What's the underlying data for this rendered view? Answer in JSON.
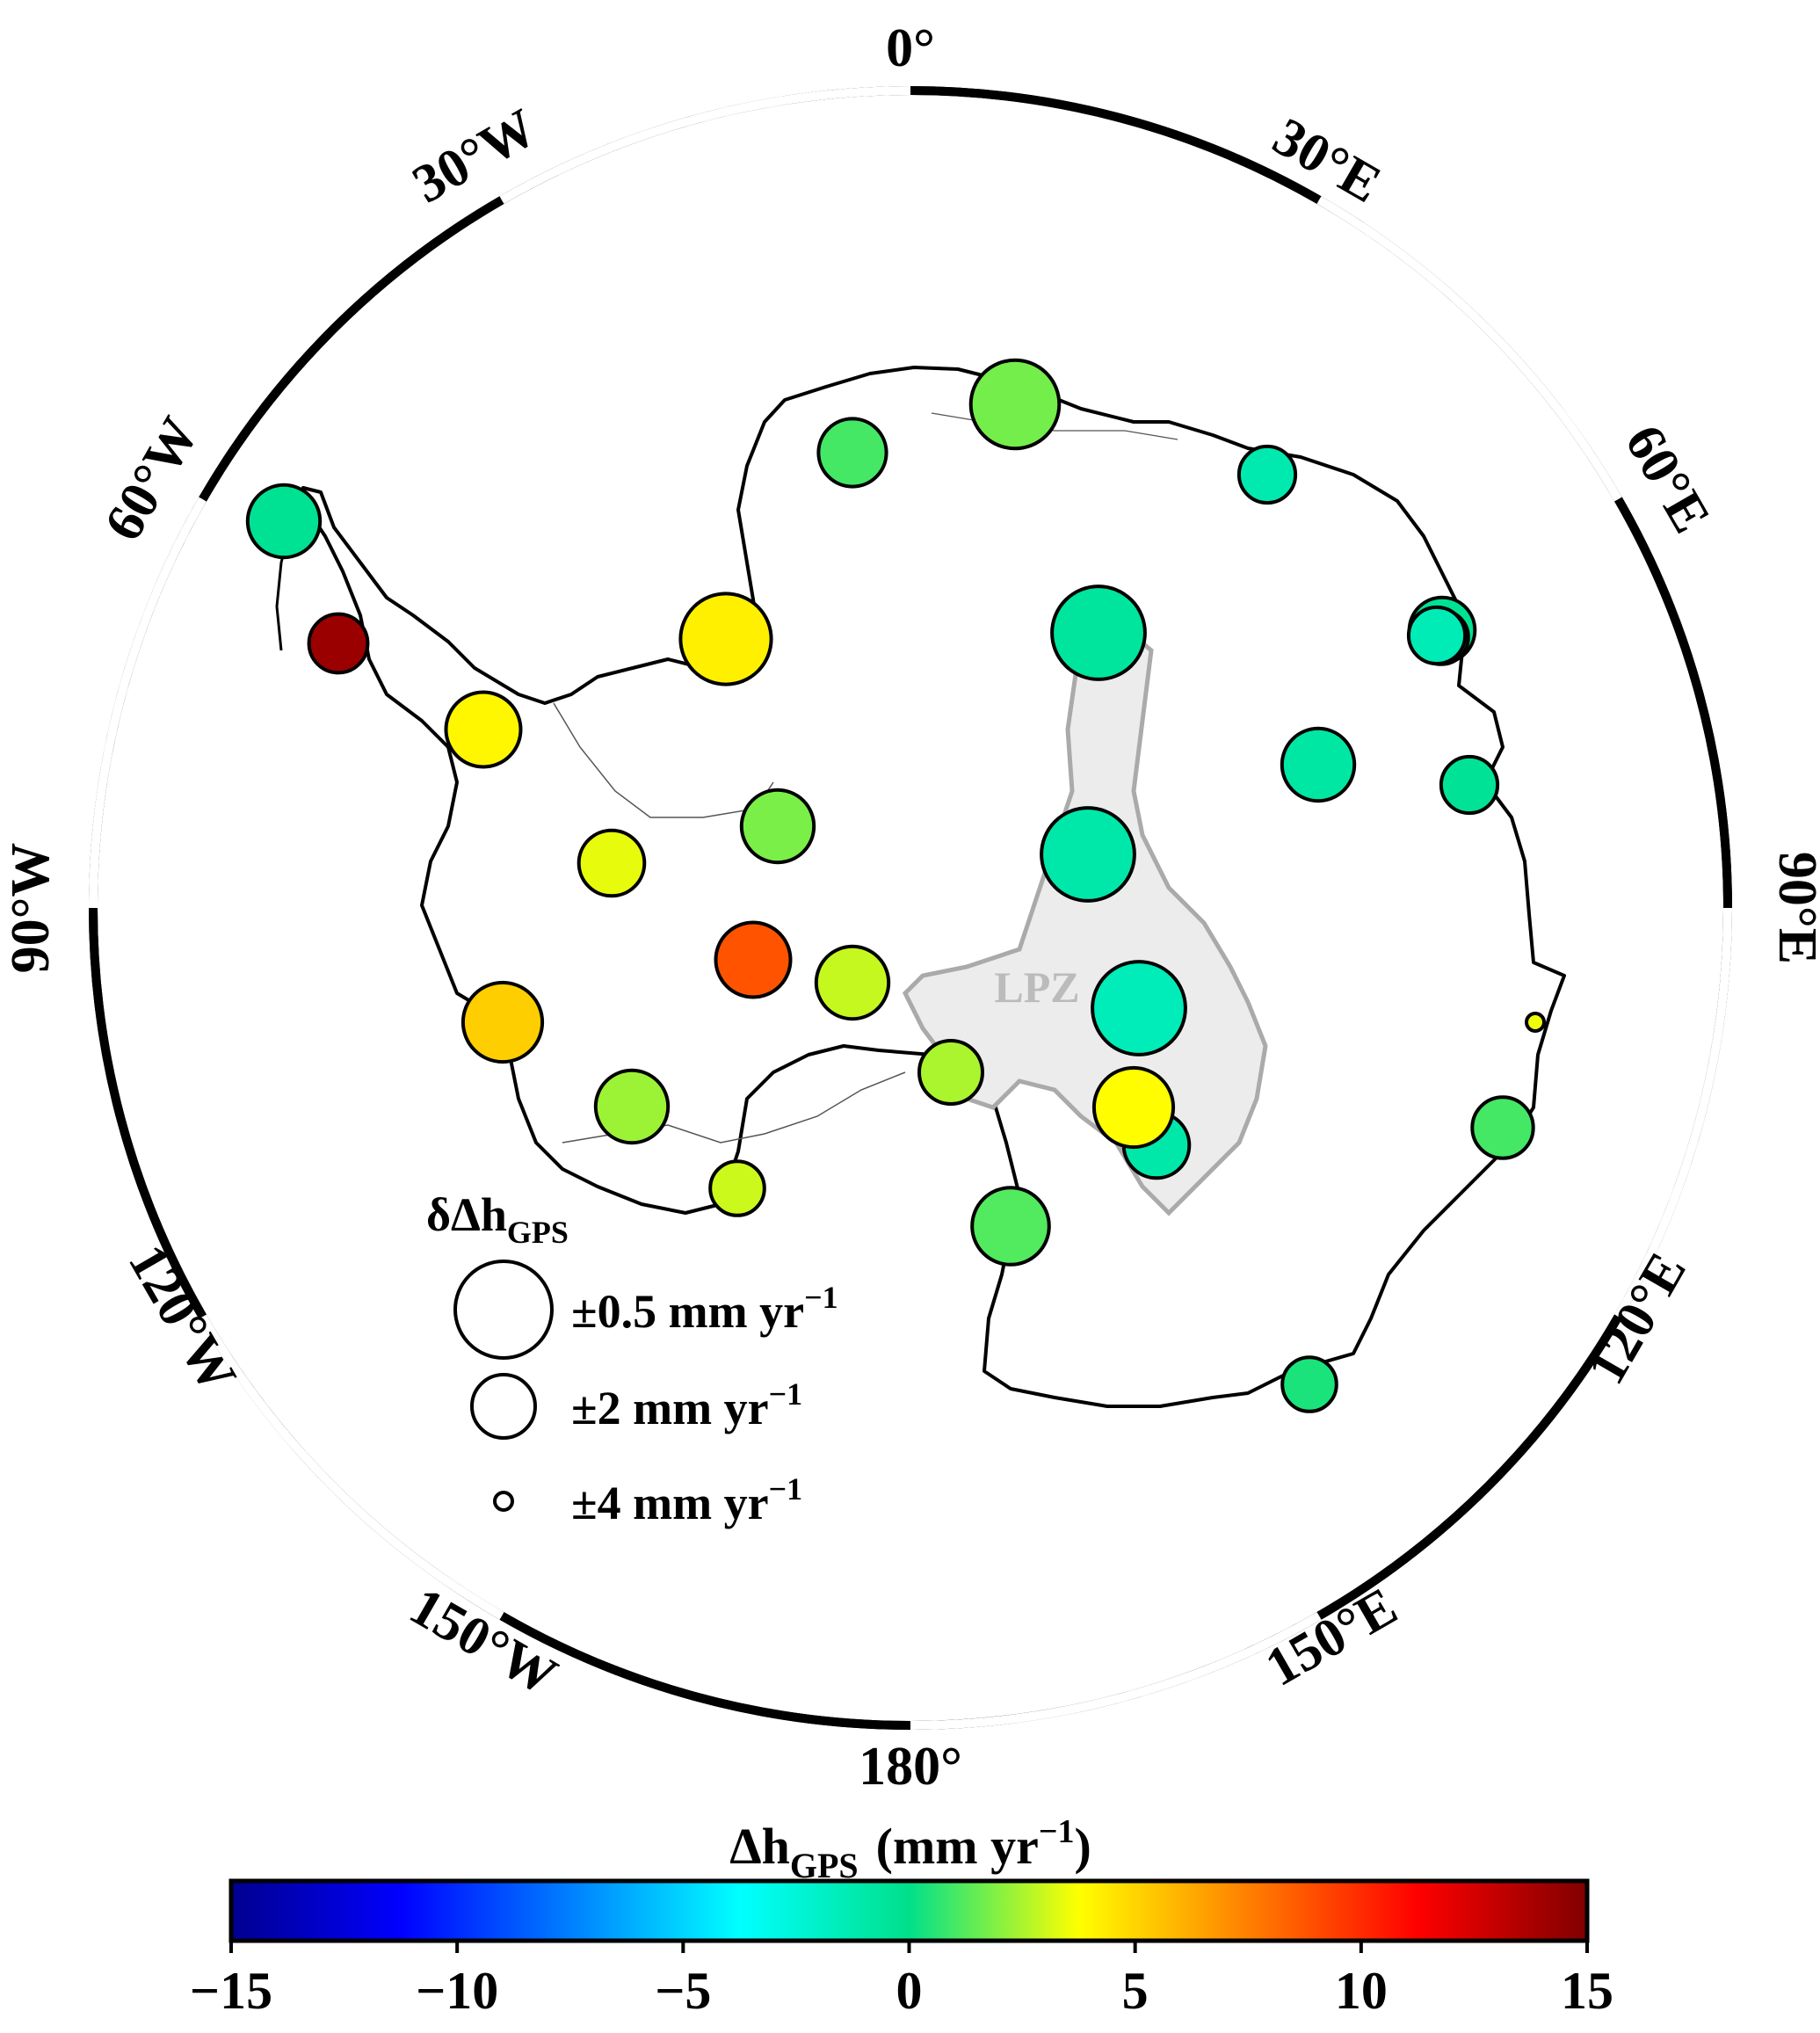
{
  "graticule_labels": {
    "top": "0°",
    "e30": "30°E",
    "e60": "60°E",
    "e90": "90°E",
    "e120": "120°E",
    "e150": "150°E",
    "bottom": "180°",
    "w150": "150°W",
    "w120": "120°W",
    "w90": "90°W",
    "w60": "60°W",
    "w30": "30°W"
  },
  "region_label": "LPZ",
  "size_legend": {
    "title_main": "δΔh",
    "title_sub": "GPS",
    "items": [
      {
        "label": "±0.5 mm yr",
        "sup": "−1"
      },
      {
        "label": "±2 mm yr",
        "sup": "−1"
      },
      {
        "label": "±4 mm yr",
        "sup": "−1"
      }
    ]
  },
  "colorbar": {
    "title_main": "Δh",
    "title_sub": "GPS",
    "title_units": "(mm yr",
    "title_sup": "−1",
    "title_close": ")",
    "min": -15,
    "max": 15,
    "ticks": [
      "−15",
      "−10",
      "−5",
      "0",
      "5",
      "10",
      "15"
    ],
    "stops": [
      {
        "v": -15,
        "c": "#00008f"
      },
      {
        "v": -11.25,
        "c": "#0000ff"
      },
      {
        "v": -3.75,
        "c": "#00ffff"
      },
      {
        "v": 0,
        "c": "#00e08a"
      },
      {
        "v": 3.75,
        "c": "#ffff00"
      },
      {
        "v": 11.25,
        "c": "#ff0000"
      },
      {
        "v": 15,
        "c": "#800000"
      }
    ]
  },
  "stations": [
    {
      "id": "s01",
      "rate": 1.0,
      "uncertainty": 1.8
    },
    {
      "id": "s02",
      "rate": 1.7,
      "uncertainty": 0.9
    },
    {
      "id": "s03",
      "rate": -0.6,
      "uncertainty": 0.7
    },
    {
      "id": "s04",
      "rate": -1.2,
      "uncertainty": 2.3
    },
    {
      "id": "s05",
      "rate": -1.0,
      "uncertainty": 0.7
    },
    {
      "id": "s06",
      "rate": -0.8,
      "uncertainty": 1.6
    },
    {
      "id": "s07",
      "rate": -1.5,
      "uncertainty": 0.7
    },
    {
      "id": "s08",
      "rate": -0.3,
      "uncertainty": 1.9
    },
    {
      "id": "s09",
      "rate": -1.0,
      "uncertainty": 1.9
    },
    {
      "id": "s10",
      "rate": -0.4,
      "uncertainty": 2.3
    },
    {
      "id": "s11",
      "rate": -1.9,
      "uncertainty": 2.4
    },
    {
      "id": "s12",
      "rate": 0.4,
      "uncertainty": 2.4
    },
    {
      "id": "s13",
      "rate": 1.0,
      "uncertainty": 2.1
    },
    {
      "id": "s14",
      "rate": 1.2,
      "uncertainty": 1.4
    },
    {
      "id": "s15",
      "rate": 4.2,
      "uncertainty": 0.8
    },
    {
      "id": "s16",
      "rate": 1.8,
      "uncertainty": 1.6
    },
    {
      "id": "s17",
      "rate": 2.5,
      "uncertainty": 2.0
    },
    {
      "id": "s18",
      "rate": 4.0,
      "uncertainty": 1.5
    },
    {
      "id": "s19",
      "rate": 2.9,
      "uncertainty": 1.6
    },
    {
      "id": "s20",
      "rate": 8.8,
      "uncertainty": 1.5
    },
    {
      "id": "s21",
      "rate": 5.2,
      "uncertainty": 1.3
    },
    {
      "id": "s22",
      "rate": 2.3,
      "uncertainty": 1.6
    },
    {
      "id": "s23",
      "rate": 3.4,
      "uncertainty": 1.9
    },
    {
      "id": "s24",
      "rate": 3.0,
      "uncertainty": 2.4
    },
    {
      "id": "s25",
      "rate": 14.2,
      "uncertainty": 2.2
    },
    {
      "id": "s26",
      "rate": -0.3,
      "uncertainty": 1.6
    },
    {
      "id": "s27",
      "rate": 3.8,
      "uncertainty": 1.3
    },
    {
      "id": "s28",
      "rate": -1.4,
      "uncertainty": 2.3
    },
    {
      "id": "s29",
      "rate": 3.5,
      "uncertainty": 4.0
    }
  ]
}
